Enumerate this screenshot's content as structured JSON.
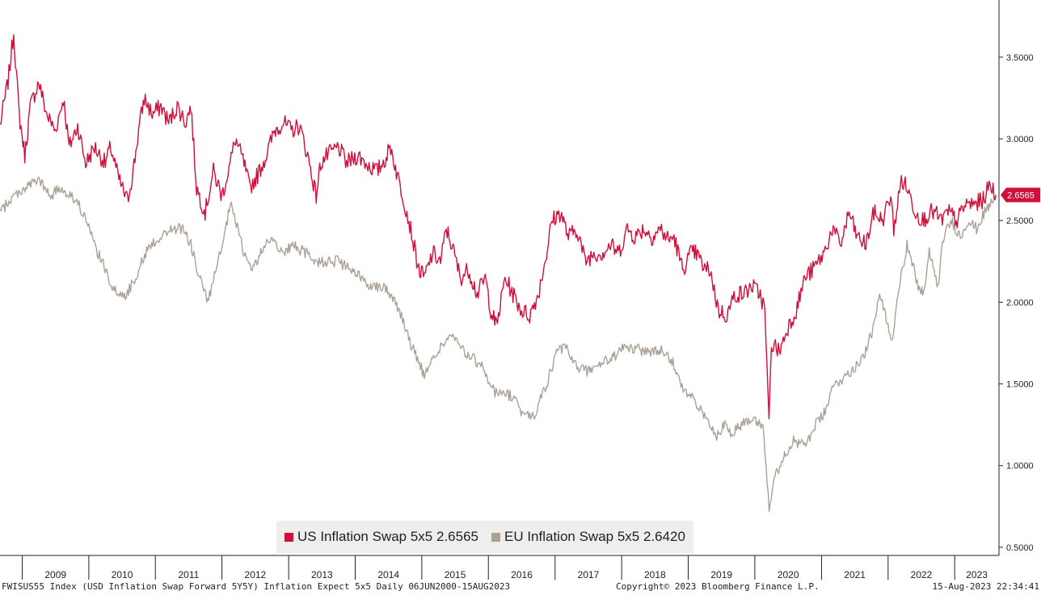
{
  "chart_data": {
    "type": "line",
    "y_ticks": [
      "0.5000",
      "1.0000",
      "1.5000",
      "2.0000",
      "2.5000",
      "3.0000",
      "3.5000"
    ],
    "ylim": [
      0.45,
      3.85
    ],
    "x_years": [
      "2009",
      "2010",
      "2011",
      "2012",
      "2013",
      "2014",
      "2015",
      "2016",
      "2017",
      "2018",
      "2019",
      "2020",
      "2021",
      "2022",
      "2023"
    ],
    "xlim": [
      "2008-09-01",
      "2023-09-01"
    ],
    "series": [
      {
        "name": "US Inflation Swap 5x5",
        "legend_label": "US Inflation Swap 5x5 2.6565",
        "color": "#d0103a",
        "last_value": "2.6565",
        "points": [
          [
            "2008-09-01",
            3.08
          ],
          [
            "2008-10-15",
            3.35
          ],
          [
            "2008-11-15",
            3.65
          ],
          [
            "2008-12-15",
            3.15
          ],
          [
            "2009-01-15",
            2.9
          ],
          [
            "2009-02-15",
            3.2
          ],
          [
            "2009-04-01",
            3.35
          ],
          [
            "2009-05-15",
            3.15
          ],
          [
            "2009-07-01",
            3.05
          ],
          [
            "2009-08-15",
            3.25
          ],
          [
            "2009-09-15",
            2.95
          ],
          [
            "2009-11-01",
            3.08
          ],
          [
            "2009-12-15",
            2.85
          ],
          [
            "2010-02-01",
            2.95
          ],
          [
            "2010-04-01",
            2.85
          ],
          [
            "2010-05-01",
            2.95
          ],
          [
            "2010-06-15",
            2.75
          ],
          [
            "2010-08-01",
            2.62
          ],
          [
            "2010-09-01",
            2.8
          ],
          [
            "2010-10-01",
            3.05
          ],
          [
            "2010-11-01",
            3.25
          ],
          [
            "2010-12-15",
            3.15
          ],
          [
            "2011-02-01",
            3.2
          ],
          [
            "2011-03-15",
            3.1
          ],
          [
            "2011-05-01",
            3.2
          ],
          [
            "2011-06-15",
            3.1
          ],
          [
            "2011-07-15",
            3.2
          ],
          [
            "2011-08-15",
            2.7
          ],
          [
            "2011-10-01",
            2.55
          ],
          [
            "2011-11-15",
            2.8
          ],
          [
            "2012-01-01",
            2.65
          ],
          [
            "2012-02-15",
            2.85
          ],
          [
            "2012-03-15",
            3.0
          ],
          [
            "2012-05-01",
            2.85
          ],
          [
            "2012-06-01",
            2.7
          ],
          [
            "2012-07-15",
            2.78
          ],
          [
            "2012-09-01",
            2.9
          ],
          [
            "2012-10-15",
            3.05
          ],
          [
            "2012-12-01",
            3.1
          ],
          [
            "2013-01-15",
            3.05
          ],
          [
            "2013-03-01",
            3.08
          ],
          [
            "2013-04-15",
            2.9
          ],
          [
            "2013-06-01",
            2.65
          ],
          [
            "2013-06-25",
            2.85
          ],
          [
            "2013-08-01",
            2.9
          ],
          [
            "2013-10-01",
            2.95
          ],
          [
            "2013-11-15",
            2.85
          ],
          [
            "2014-01-15",
            2.9
          ],
          [
            "2014-03-01",
            2.85
          ],
          [
            "2014-05-01",
            2.8
          ],
          [
            "2014-06-15",
            2.88
          ],
          [
            "2014-07-15",
            2.95
          ],
          [
            "2014-08-15",
            2.8
          ],
          [
            "2014-10-01",
            2.6
          ],
          [
            "2014-11-01",
            2.45
          ],
          [
            "2014-12-15",
            2.2
          ],
          [
            "2015-01-15",
            2.15
          ],
          [
            "2015-03-01",
            2.3
          ],
          [
            "2015-04-15",
            2.25
          ],
          [
            "2015-05-15",
            2.45
          ],
          [
            "2015-06-15",
            2.35
          ],
          [
            "2015-08-01",
            2.15
          ],
          [
            "2015-09-15",
            2.2
          ],
          [
            "2015-11-01",
            2.05
          ],
          [
            "2015-12-15",
            2.15
          ],
          [
            "2016-01-15",
            1.95
          ],
          [
            "2016-02-15",
            1.85
          ],
          [
            "2016-04-01",
            2.15
          ],
          [
            "2016-05-15",
            2.05
          ],
          [
            "2016-07-01",
            1.95
          ],
          [
            "2016-08-15",
            1.92
          ],
          [
            "2016-10-01",
            2.05
          ],
          [
            "2016-11-15",
            2.3
          ],
          [
            "2016-12-15",
            2.5
          ],
          [
            "2017-02-01",
            2.55
          ],
          [
            "2017-03-15",
            2.4
          ],
          [
            "2017-05-01",
            2.45
          ],
          [
            "2017-06-15",
            2.25
          ],
          [
            "2017-08-01",
            2.3
          ],
          [
            "2017-09-15",
            2.3
          ],
          [
            "2017-11-01",
            2.35
          ],
          [
            "2017-12-15",
            2.3
          ],
          [
            "2018-02-01",
            2.45
          ],
          [
            "2018-03-15",
            2.4
          ],
          [
            "2018-05-01",
            2.45
          ],
          [
            "2018-06-15",
            2.4
          ],
          [
            "2018-08-01",
            2.45
          ],
          [
            "2018-09-15",
            2.38
          ],
          [
            "2018-10-15",
            2.4
          ],
          [
            "2018-12-01",
            2.2
          ],
          [
            "2019-01-15",
            2.3
          ],
          [
            "2019-02-15",
            2.3
          ],
          [
            "2019-04-01",
            2.2
          ],
          [
            "2019-05-01",
            2.2
          ],
          [
            "2019-06-15",
            1.95
          ],
          [
            "2019-08-01",
            1.92
          ],
          [
            "2019-09-15",
            2.05
          ],
          [
            "2019-11-01",
            2.05
          ],
          [
            "2019-12-15",
            2.1
          ],
          [
            "2020-01-31",
            2.05
          ],
          [
            "2020-02-25",
            1.95
          ],
          [
            "2020-03-19",
            1.25
          ],
          [
            "2020-04-01",
            1.75
          ],
          [
            "2020-05-15",
            1.7
          ],
          [
            "2020-07-01",
            1.85
          ],
          [
            "2020-08-15",
            1.95
          ],
          [
            "2020-10-01",
            2.15
          ],
          [
            "2020-11-15",
            2.2
          ],
          [
            "2021-01-15",
            2.3
          ],
          [
            "2021-03-01",
            2.45
          ],
          [
            "2021-04-15",
            2.35
          ],
          [
            "2021-06-01",
            2.55
          ],
          [
            "2021-07-15",
            2.4
          ],
          [
            "2021-09-01",
            2.35
          ],
          [
            "2021-10-15",
            2.55
          ],
          [
            "2021-12-01",
            2.5
          ],
          [
            "2022-01-15",
            2.65
          ],
          [
            "2022-02-01",
            2.45
          ],
          [
            "2022-03-15",
            2.75
          ],
          [
            "2022-04-15",
            2.7
          ],
          [
            "2022-06-01",
            2.55
          ],
          [
            "2022-07-15",
            2.5
          ],
          [
            "2022-08-15",
            2.55
          ],
          [
            "2022-09-15",
            2.55
          ],
          [
            "2022-10-15",
            2.5
          ],
          [
            "2022-12-01",
            2.55
          ],
          [
            "2023-01-15",
            2.5
          ],
          [
            "2023-03-01",
            2.6
          ],
          [
            "2023-04-15",
            2.6
          ],
          [
            "2023-06-01",
            2.62
          ],
          [
            "2023-07-15",
            2.72
          ],
          [
            "2023-08-15",
            2.6565
          ]
        ]
      },
      {
        "name": "EU Inflation Swap 5x5",
        "legend_label": "EU Inflation Swap 5x5 2.6420",
        "color": "#aba196",
        "last_value": "2.6420",
        "points": [
          [
            "2008-09-01",
            2.55
          ],
          [
            "2008-11-15",
            2.65
          ],
          [
            "2009-01-15",
            2.7
          ],
          [
            "2009-04-01",
            2.75
          ],
          [
            "2009-06-01",
            2.65
          ],
          [
            "2009-08-01",
            2.7
          ],
          [
            "2009-10-01",
            2.65
          ],
          [
            "2009-12-01",
            2.55
          ],
          [
            "2010-02-01",
            2.35
          ],
          [
            "2010-04-01",
            2.2
          ],
          [
            "2010-06-01",
            2.05
          ],
          [
            "2010-08-01",
            2.05
          ],
          [
            "2010-10-01",
            2.2
          ],
          [
            "2010-12-01",
            2.35
          ],
          [
            "2011-02-01",
            2.4
          ],
          [
            "2011-04-01",
            2.45
          ],
          [
            "2011-06-01",
            2.45
          ],
          [
            "2011-07-15",
            2.35
          ],
          [
            "2011-09-01",
            2.15
          ],
          [
            "2011-10-15",
            2.0
          ],
          [
            "2011-12-01",
            2.2
          ],
          [
            "2012-01-15",
            2.4
          ],
          [
            "2012-02-15",
            2.6
          ],
          [
            "2012-03-15",
            2.5
          ],
          [
            "2012-05-01",
            2.3
          ],
          [
            "2012-06-15",
            2.2
          ],
          [
            "2012-08-01",
            2.3
          ],
          [
            "2012-10-01",
            2.4
          ],
          [
            "2012-12-01",
            2.3
          ],
          [
            "2013-02-01",
            2.35
          ],
          [
            "2013-04-01",
            2.3
          ],
          [
            "2013-06-01",
            2.25
          ],
          [
            "2013-08-01",
            2.25
          ],
          [
            "2013-10-01",
            2.25
          ],
          [
            "2013-12-01",
            2.2
          ],
          [
            "2014-02-01",
            2.15
          ],
          [
            "2014-04-01",
            2.1
          ],
          [
            "2014-06-01",
            2.1
          ],
          [
            "2014-07-15",
            2.05
          ],
          [
            "2014-09-01",
            1.95
          ],
          [
            "2014-11-01",
            1.75
          ],
          [
            "2015-01-15",
            1.55
          ],
          [
            "2015-03-01",
            1.65
          ],
          [
            "2015-05-01",
            1.75
          ],
          [
            "2015-06-15",
            1.8
          ],
          [
            "2015-08-15",
            1.7
          ],
          [
            "2015-10-15",
            1.65
          ],
          [
            "2015-12-01",
            1.6
          ],
          [
            "2016-02-01",
            1.45
          ],
          [
            "2016-03-15",
            1.45
          ],
          [
            "2016-05-15",
            1.42
          ],
          [
            "2016-07-15",
            1.3
          ],
          [
            "2016-09-15",
            1.32
          ],
          [
            "2016-11-15",
            1.5
          ],
          [
            "2017-01-15",
            1.7
          ],
          [
            "2017-03-01",
            1.72
          ],
          [
            "2017-05-01",
            1.6
          ],
          [
            "2017-07-01",
            1.58
          ],
          [
            "2017-09-01",
            1.62
          ],
          [
            "2017-11-01",
            1.65
          ],
          [
            "2018-01-15",
            1.72
          ],
          [
            "2018-03-15",
            1.72
          ],
          [
            "2018-05-01",
            1.7
          ],
          [
            "2018-07-01",
            1.7
          ],
          [
            "2018-09-01",
            1.7
          ],
          [
            "2018-10-15",
            1.62
          ],
          [
            "2018-12-15",
            1.45
          ],
          [
            "2019-02-01",
            1.4
          ],
          [
            "2019-04-01",
            1.3
          ],
          [
            "2019-06-01",
            1.18
          ],
          [
            "2019-07-15",
            1.25
          ],
          [
            "2019-09-01",
            1.2
          ],
          [
            "2019-10-15",
            1.25
          ],
          [
            "2019-12-15",
            1.3
          ],
          [
            "2020-02-15",
            1.25
          ],
          [
            "2020-03-20",
            0.75
          ],
          [
            "2020-04-15",
            0.9
          ],
          [
            "2020-06-01",
            1.05
          ],
          [
            "2020-08-01",
            1.15
          ],
          [
            "2020-10-01",
            1.12
          ],
          [
            "2020-12-01",
            1.25
          ],
          [
            "2021-01-15",
            1.32
          ],
          [
            "2021-03-15",
            1.5
          ],
          [
            "2021-05-15",
            1.55
          ],
          [
            "2021-07-01",
            1.6
          ],
          [
            "2021-09-01",
            1.7
          ],
          [
            "2021-10-15",
            1.85
          ],
          [
            "2021-11-15",
            2.05
          ],
          [
            "2022-01-01",
            1.85
          ],
          [
            "2022-01-20",
            1.75
          ],
          [
            "2022-03-01",
            2.1
          ],
          [
            "2022-04-15",
            2.35
          ],
          [
            "2022-06-15",
            2.1
          ],
          [
            "2022-07-15",
            2.05
          ],
          [
            "2022-08-15",
            2.3
          ],
          [
            "2022-10-01",
            2.1
          ],
          [
            "2022-11-01",
            2.4
          ],
          [
            "2022-12-15",
            2.5
          ],
          [
            "2023-02-01",
            2.4
          ],
          [
            "2023-03-15",
            2.5
          ],
          [
            "2023-05-01",
            2.45
          ],
          [
            "2023-06-15",
            2.55
          ],
          [
            "2023-07-15",
            2.6
          ],
          [
            "2023-08-15",
            2.642
          ]
        ]
      }
    ]
  },
  "footer": {
    "left": "FWISUS55 Index (USD Inflation Swap Forward 5Y5Y) Inflation Expect 5x5  Daily 06JUN2000-15AUG2023",
    "center": "Copyright© 2023 Bloomberg Finance L.P.",
    "right": "15-Aug-2023 22:34:41"
  }
}
